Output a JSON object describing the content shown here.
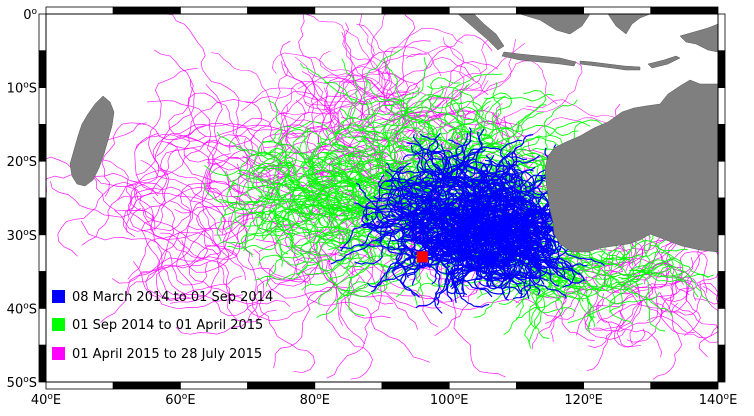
{
  "map": {
    "lon_range": [
      40,
      140
    ],
    "lat_range": [
      0,
      -50
    ],
    "ocean_color": "#ffffff",
    "land_color": "#7f7f7f",
    "frame_color": "#000000",
    "y_ticks": [
      {
        "lat": 0,
        "label": "0",
        "sup": "o",
        "suffix": ""
      },
      {
        "lat": -10,
        "label": "10",
        "sup": "o",
        "suffix": "S"
      },
      {
        "lat": -20,
        "label": "20",
        "sup": "o",
        "suffix": "S"
      },
      {
        "lat": -30,
        "label": "30",
        "sup": "o",
        "suffix": "S"
      },
      {
        "lat": -40,
        "label": "40",
        "sup": "o",
        "suffix": "S"
      },
      {
        "lat": -50,
        "label": "50",
        "sup": "o",
        "suffix": "S"
      }
    ],
    "x_ticks": [
      {
        "lon": 40,
        "label": "40",
        "sup": "o",
        "suffix": "E"
      },
      {
        "lon": 60,
        "label": "60",
        "sup": "o",
        "suffix": "E"
      },
      {
        "lon": 80,
        "label": "80",
        "sup": "o",
        "suffix": "E"
      },
      {
        "lon": 100,
        "label": "100",
        "sup": "o",
        "suffix": "E"
      },
      {
        "lon": 120,
        "label": "120",
        "sup": "o",
        "suffix": "E"
      },
      {
        "lon": 140,
        "label": "140",
        "sup": "o",
        "suffix": "E"
      }
    ],
    "marker": {
      "lon": 96.0,
      "lat": -33.0,
      "color": "#ff0000"
    }
  },
  "legend": [
    {
      "label": "08 March 2014 to 01 Sep 2014",
      "color": "#0000ff"
    },
    {
      "label": "01 Sep 2014 to 01 April 2015",
      "color": "#00ff00"
    },
    {
      "label": "01 April 2015 to 28 July 2015",
      "color": "#ff00ff"
    }
  ]
}
